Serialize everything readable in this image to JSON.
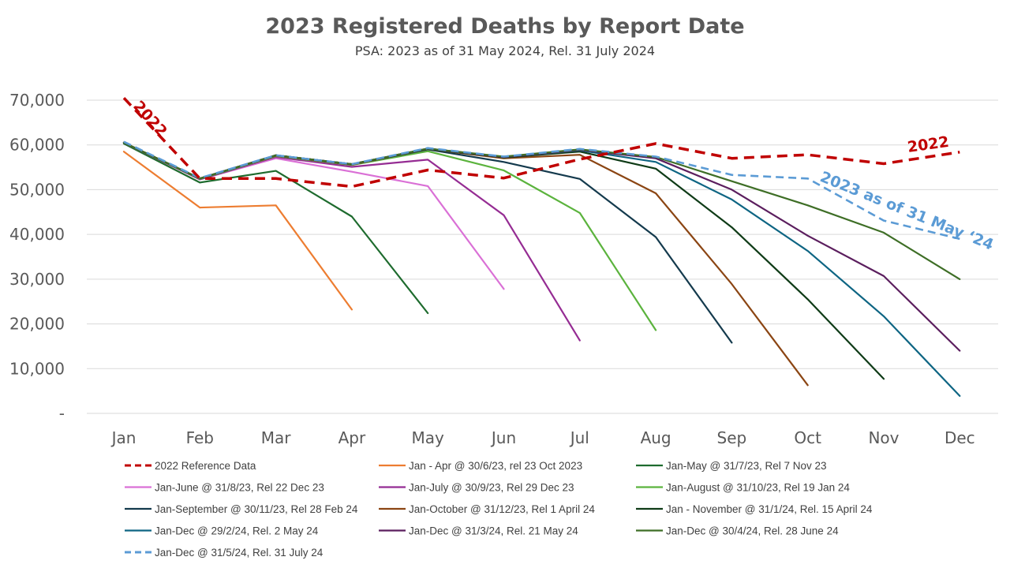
{
  "chart_data": {
    "type": "line",
    "title": "2023 Registered Deaths by Report Date",
    "subtitle": "PSA: 2023 as of 31 May 2024, Rel. 31 July 2024",
    "xlabel": "",
    "ylabel": "",
    "categories": [
      "Jan",
      "Feb",
      "Mar",
      "Apr",
      "May",
      "Jun",
      "Jul",
      "Aug",
      "Sep",
      "Oct",
      "Nov",
      "Dec"
    ],
    "ylim": [
      0,
      70000
    ],
    "yticks": [
      0,
      10000,
      20000,
      30000,
      40000,
      50000,
      60000,
      70000
    ],
    "ytick_labels": [
      "-",
      "10,000",
      "20,000",
      "30,000",
      "40,000",
      "50,000",
      "60,000",
      "70,000"
    ],
    "grid": true,
    "legend_position": "bottom",
    "series": [
      {
        "name": "2022 Reference Data",
        "color": "#C00000",
        "dash": true,
        "width": 3.5,
        "values": [
          70500,
          52500,
          52500,
          50700,
          54400,
          52600,
          56800,
          60300,
          57000,
          57800,
          55800,
          58400
        ]
      },
      {
        "name": "Jan - Apr @ 30/6/23, rel 23 Oct 2023",
        "color": "#ED7D31",
        "dash": false,
        "width": 2.2,
        "values": [
          58500,
          46000,
          46500,
          23200,
          null,
          null,
          null,
          null,
          null,
          null,
          null,
          null
        ]
      },
      {
        "name": "Jan-May @ 31/7/23, Rel 7 Nov 23",
        "color": "#1E6B2E",
        "dash": false,
        "width": 2.2,
        "values": [
          60300,
          51600,
          54200,
          44000,
          22400,
          null,
          null,
          null,
          null,
          null,
          null,
          null
        ]
      },
      {
        "name": "Jan-June @ 31/8/23, Rel 22 Dec 23",
        "color": "#DA70D6",
        "dash": false,
        "width": 2.2,
        "values": [
          60500,
          52300,
          57000,
          54000,
          50800,
          27800,
          null,
          null,
          null,
          null,
          null,
          null
        ]
      },
      {
        "name": "Jan-July @ 30/9/23, Rel 29 Dec 23",
        "color": "#952C93",
        "dash": false,
        "width": 2.2,
        "values": [
          60500,
          52300,
          57300,
          55100,
          56700,
          44300,
          16300,
          null,
          null,
          null,
          null,
          null
        ]
      },
      {
        "name": "Jan-August @ 31/10/23, Rel 19 Jan 24",
        "color": "#5BB33D",
        "dash": false,
        "width": 2.2,
        "values": [
          60500,
          52400,
          57500,
          55500,
          58600,
          54300,
          44800,
          18600,
          null,
          null,
          null,
          null
        ]
      },
      {
        "name": "Jan-September @ 30/11/23, Rel 28 Feb 24",
        "color": "#143A4D",
        "dash": false,
        "width": 2.2,
        "values": [
          60500,
          52500,
          57600,
          55600,
          59000,
          56200,
          52400,
          39400,
          15800,
          null,
          null,
          null
        ]
      },
      {
        "name": "Jan-October @ 31/12/23, Rel 1 April 24",
        "color": "#8B4513",
        "dash": false,
        "width": 2.2,
        "values": [
          60500,
          52500,
          57600,
          55600,
          59100,
          57000,
          57800,
          49200,
          28900,
          6300,
          null,
          null
        ]
      },
      {
        "name": "Jan - November @ 31/1/24, Rel. 15 April 24",
        "color": "#0F3B17",
        "dash": false,
        "width": 2.2,
        "values": [
          60500,
          52500,
          57700,
          55700,
          59100,
          57200,
          58500,
          54700,
          41600,
          25500,
          7700,
          null
        ]
      },
      {
        "name": "Jan-Dec @ 29/2/24, Rel. 2 May 24",
        "color": "#0E6583",
        "dash": false,
        "width": 2.2,
        "values": [
          60500,
          52500,
          57700,
          55700,
          59200,
          57300,
          58800,
          56200,
          47800,
          36300,
          21700,
          3900
        ]
      },
      {
        "name": "Jan-Dec @ 31/3/24, Rel. 21 May 24",
        "color": "#5B1E5E",
        "dash": false,
        "width": 2.2,
        "values": [
          60500,
          52500,
          57700,
          55700,
          59200,
          57300,
          58900,
          57000,
          50000,
          39700,
          30700,
          14000
        ]
      },
      {
        "name": "Jan-Dec @ 30/4/24, Rel. 28 June 24",
        "color": "#3E6E26",
        "dash": false,
        "width": 2.2,
        "values": [
          60500,
          52500,
          57700,
          55700,
          59200,
          57400,
          59000,
          57300,
          51900,
          46500,
          40400,
          30000
        ]
      },
      {
        "name": "Jan-Dec @ 31/5/24, Rel. 31 July 24",
        "color": "#5B9BD5",
        "dash": true,
        "width": 2.6,
        "values": [
          60700,
          52600,
          57700,
          55700,
          59300,
          57400,
          59100,
          57400,
          53300,
          52500,
          43100,
          39000
        ]
      }
    ],
    "annotations": [
      {
        "text": "2022",
        "color": "#C00000"
      },
      {
        "text": "2022",
        "color": "#C00000"
      },
      {
        "text": "2023 as of 31 May ‘24",
        "color": "#5B9BD5"
      }
    ]
  }
}
